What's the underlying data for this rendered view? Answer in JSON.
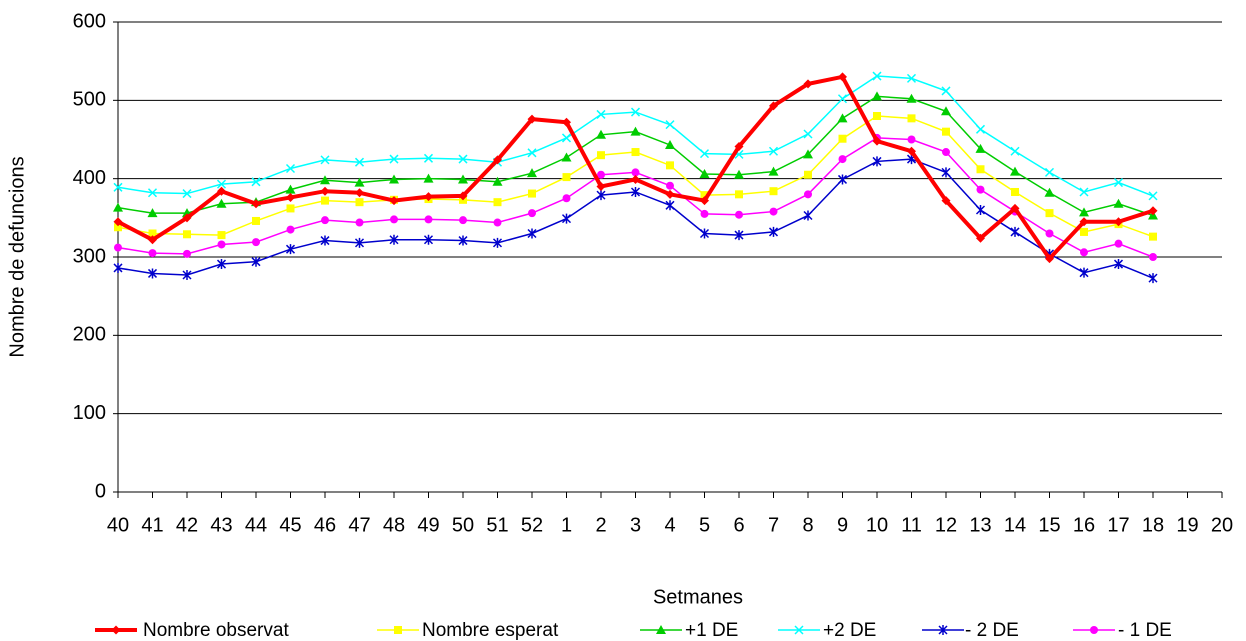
{
  "chart_data": {
    "type": "line",
    "x_label": "Setmanes",
    "y_label": "Nombre de defuncions",
    "categories": [
      "40",
      "41",
      "42",
      "43",
      "44",
      "45",
      "46",
      "47",
      "48",
      "49",
      "50",
      "51",
      "52",
      "1",
      "2",
      "3",
      "4",
      "5",
      "6",
      "7",
      "8",
      "9",
      "10",
      "11",
      "12",
      "13",
      "14",
      "15",
      "16",
      "17",
      "18",
      "19",
      "20"
    ],
    "ylim": [
      0,
      600
    ],
    "yticks": [
      0,
      100,
      200,
      300,
      400,
      500,
      600
    ],
    "grid": true,
    "legend": "bottom",
    "series": [
      {
        "name": "Nombre observat",
        "color": "#ff0000",
        "marker": "diamond",
        "values": [
          345,
          322,
          350,
          384,
          368,
          376,
          384,
          382,
          372,
          377,
          378,
          424,
          476,
          472,
          390,
          399,
          380,
          372,
          441,
          493,
          521,
          530,
          448,
          435,
          372,
          324,
          362,
          298,
          345,
          345,
          359,
          null,
          null
        ]
      },
      {
        "name": "Nombre esperat",
        "color": "#ffff00",
        "marker": "square",
        "values": [
          338,
          330,
          329,
          328,
          346,
          362,
          372,
          370,
          373,
          374,
          373,
          370,
          381,
          402,
          430,
          434,
          417,
          379,
          380,
          384,
          405,
          451,
          480,
          477,
          460,
          412,
          383,
          356,
          332,
          342,
          326,
          null,
          null
        ]
      },
      {
        "name": "+1 DE",
        "color": "#00cc00",
        "marker": "triangle",
        "values": [
          363,
          356,
          356,
          368,
          370,
          386,
          398,
          395,
          399,
          400,
          399,
          396,
          407,
          427,
          456,
          460,
          443,
          406,
          405,
          409,
          431,
          477,
          505,
          502,
          486,
          438,
          409,
          382,
          357,
          368,
          353,
          null,
          null
        ]
      },
      {
        "name": "+2 DE",
        "color": "#00ffff",
        "marker": "x",
        "values": [
          389,
          382,
          381,
          393,
          396,
          413,
          424,
          421,
          425,
          426,
          425,
          421,
          433,
          452,
          482,
          485,
          469,
          432,
          431,
          435,
          457,
          502,
          531,
          528,
          512,
          463,
          435,
          408,
          383,
          395,
          378,
          null,
          null
        ]
      },
      {
        "name": "- 2 DE",
        "color": "#0000cc",
        "marker": "star",
        "values": [
          286,
          279,
          277,
          291,
          294,
          310,
          321,
          318,
          322,
          322,
          321,
          318,
          330,
          349,
          379,
          383,
          366,
          330,
          328,
          332,
          353,
          399,
          422,
          425,
          408,
          360,
          332,
          304,
          280,
          291,
          273,
          null,
          null
        ]
      },
      {
        "name": "- 1 DE",
        "color": "#ff00ff",
        "marker": "circle",
        "values": [
          312,
          305,
          304,
          316,
          319,
          335,
          347,
          344,
          348,
          348,
          347,
          344,
          356,
          375,
          405,
          408,
          391,
          355,
          354,
          358,
          380,
          425,
          452,
          450,
          434,
          386,
          358,
          330,
          306,
          317,
          300,
          null,
          null
        ]
      }
    ]
  }
}
